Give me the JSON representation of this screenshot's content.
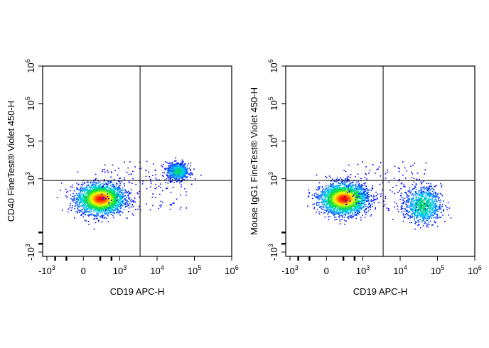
{
  "chart_data": [
    {
      "type": "scatter",
      "style": "pseudocolor density dot plot",
      "xlabel": "CD19 APC-H",
      "ylabel": "CD40 FineTest® Violet 450-H",
      "x_scale": "biexponential",
      "y_scale": "biexponential",
      "x_ticks": [
        "-10^3",
        "0",
        "10^3",
        "10^4",
        "10^5",
        "10^6"
      ],
      "y_ticks": [
        "-10^3",
        "10^3",
        "10^4",
        "10^5",
        "10^6"
      ],
      "quadrant_gate": {
        "x": 3500,
        "y": 900
      },
      "populations": [
        {
          "center": [
            300,
            300
          ],
          "spread": "dense",
          "peak_color": "red"
        },
        {
          "center": [
            35000,
            1600
          ],
          "spread": "compact",
          "peak_color": "cyan"
        }
      ]
    },
    {
      "type": "scatter",
      "style": "pseudocolor density dot plot",
      "xlabel": "CD19 APC-H",
      "ylabel": "Mouse IgG1 FineTest® Violet 450-H",
      "x_scale": "biexponential",
      "y_scale": "biexponential",
      "x_ticks": [
        "-10^3",
        "0",
        "10^3",
        "10^4",
        "10^5",
        "10^6"
      ],
      "y_ticks": [
        "-10^3",
        "10^3",
        "10^4",
        "10^5",
        "10^6"
      ],
      "quadrant_gate": {
        "x": 3500,
        "y": 900
      },
      "populations": [
        {
          "center": [
            300,
            300
          ],
          "spread": "dense",
          "peak_color": "red"
        },
        {
          "center": [
            40000,
            200
          ],
          "spread": "diffuse",
          "peak_color": "cyan"
        }
      ]
    }
  ]
}
